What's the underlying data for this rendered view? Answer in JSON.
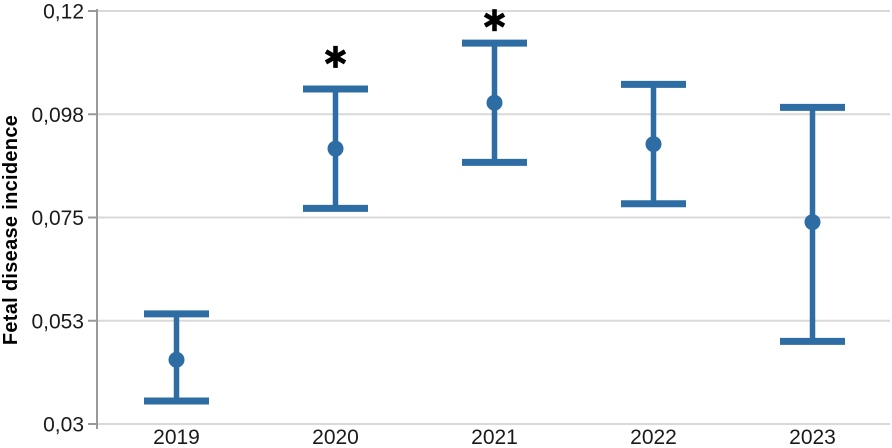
{
  "chart_data": {
    "type": "scatter",
    "subtype": "mean-with-error-bars",
    "title": "",
    "xlabel": "",
    "ylabel": "Fetal disease incidence",
    "categories": [
      "2019",
      "2020",
      "2021",
      "2022",
      "2023"
    ],
    "series": [
      {
        "name": "Fetal disease incidence",
        "values": [
          0.044,
          0.09,
          0.1,
          0.091,
          0.074
        ],
        "upper": [
          0.054,
          0.103,
          0.113,
          0.104,
          0.099
        ],
        "lower": [
          0.035,
          0.077,
          0.087,
          0.078,
          0.048
        ]
      }
    ],
    "annotations": [
      {
        "category": "2020",
        "symbol": "*",
        "y": 0.11
      },
      {
        "category": "2021",
        "symbol": "*",
        "y": 0.118
      }
    ],
    "ylim": [
      0.03,
      0.12
    ],
    "yticks": [
      {
        "value": 0.12,
        "label": "0,12"
      },
      {
        "value": 0.0975,
        "label": "0,098"
      },
      {
        "value": 0.075,
        "label": "0,075"
      },
      {
        "value": 0.0525,
        "label": "0,053"
      },
      {
        "value": 0.03,
        "label": "0,03"
      }
    ],
    "grid": true,
    "legend": false,
    "colors": {
      "marker": "#2E6DA4",
      "grid": "#D9D9D9",
      "axis": "#999999",
      "text": "#1A1A1A",
      "annotation": "#000000"
    }
  }
}
